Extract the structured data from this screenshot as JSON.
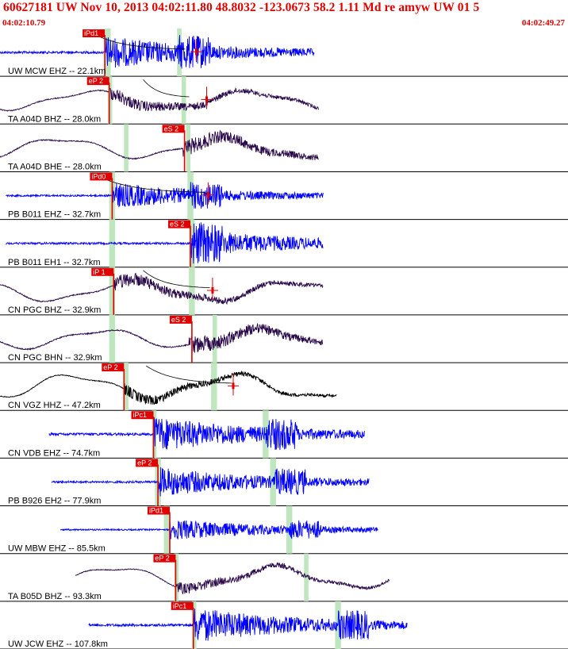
{
  "header": {
    "title": "60627181 UW Nov 10, 2013 04:02:11.80    48.8032 -123.0673 58.2 1.11 Md re amyw UW 01    5",
    "start_time": "04:02:10.79",
    "end_time": "04:02:49.27"
  },
  "time_axis": {
    "t0": 0,
    "t1": 38.48
  },
  "colors": {
    "red": "#e00000",
    "green": "#bfe6bf",
    "blue": "#0000ff",
    "purple": "#2b0a4a",
    "black": "#000000"
  },
  "traces": [
    {
      "label": "UW MCW EHZ -- 22.1km",
      "color": "blue",
      "kind": "hf",
      "start": 0.0,
      "end": 21.3,
      "p_time": 7.1,
      "p_label": "iPd1",
      "s_time": 12.1,
      "green": [
        [
          7.1,
          7.5
        ],
        [
          12.0,
          12.3
        ]
      ],
      "amp": 0.28,
      "lf": 0,
      "event": 7.1,
      "decay": [
        6.1,
        12.6
      ],
      "coda": 13.3
    },
    {
      "label": "TA A04D BHZ -- 28.0km",
      "color": "purple",
      "kind": "lf",
      "start": 0.0,
      "end": 21.6,
      "p_time": 7.4,
      "p_label": "eP 2",
      "s_time": 12.8,
      "green": [
        [
          7.3,
          7.6
        ],
        [
          12.3,
          12.6
        ]
      ],
      "amp": 0.12,
      "lf": 0.55,
      "event": 7.4,
      "decay": [
        9.7,
        12.9
      ],
      "coda": 14.0
    },
    {
      "label": "TA A04D BHE -- 28.0km",
      "color": "purple",
      "kind": "lf",
      "start": 0.0,
      "end": 21.6,
      "p_time": 12.5,
      "p_label": "eS 2",
      "s_time": 12.5,
      "green": [
        [
          8.4,
          8.7
        ],
        [
          12.6,
          12.9
        ]
      ],
      "amp": 0.14,
      "lf": 0.6,
      "event": 12.4,
      "decay": null,
      "coda": null
    },
    {
      "label": "PB B011 EHZ -- 32.7km",
      "color": "blue",
      "kind": "hf",
      "start": 0.4,
      "end": 21.9,
      "p_time": 7.6,
      "p_label": "iPd0",
      "s_time": 12.9,
      "green": [
        [
          7.4,
          7.8
        ],
        [
          12.7,
          13.1
        ]
      ],
      "amp": 0.22,
      "lf": 0,
      "event": 7.6,
      "decay": [
        6.5,
        14.0
      ],
      "coda": 14.1
    },
    {
      "label": "PB B011 EH1 -- 32.7km",
      "color": "blue",
      "kind": "hf",
      "start": 0.4,
      "end": 21.9,
      "p_time": 12.9,
      "p_label": "eS 2",
      "s_time": 12.9,
      "green": [
        [
          7.4,
          7.8
        ],
        [
          12.8,
          13.2
        ]
      ],
      "amp": 0.25,
      "lf": 0,
      "event": 12.9,
      "decay": null,
      "coda": null
    },
    {
      "label": "CN PGC BHZ -- 32.9km",
      "color": "purple",
      "kind": "lf",
      "start": 0.0,
      "end": 21.9,
      "p_time": 7.7,
      "p_label": "iP 1",
      "s_time": 13.1,
      "green": [
        [
          7.4,
          7.8
        ],
        [
          12.8,
          13.2
        ]
      ],
      "amp": 0.13,
      "lf": 0.6,
      "event": 7.7,
      "decay": [
        9.7,
        14.3
      ],
      "coda": 14.4
    },
    {
      "label": "CN PGC BHN -- 32.9km",
      "color": "purple",
      "kind": "lf",
      "start": 0.0,
      "end": 21.9,
      "p_time": 13.0,
      "p_label": "eS 2",
      "s_time": 13.0,
      "green": [
        [
          7.4,
          7.8
        ],
        [
          14.4,
          14.7
        ]
      ],
      "amp": 0.15,
      "lf": 0.55,
      "event": 12.8,
      "decay": null,
      "coda": null
    },
    {
      "label": "CN VGZ HHZ -- 47.2km",
      "color": "black",
      "kind": "lf",
      "start": 0.0,
      "end": 22.8,
      "p_time": 8.4,
      "p_label": "eP 2",
      "s_time": 14.6,
      "green": [
        [
          8.4,
          8.7
        ],
        [
          14.3,
          14.7
        ]
      ],
      "amp": 0.1,
      "lf": 0.72,
      "event": 8.4,
      "decay": [
        9.9,
        15.8
      ],
      "coda": 15.8
    },
    {
      "label": "CN VDB EHZ -- 74.7km",
      "color": "blue",
      "kind": "hf",
      "start": 3.3,
      "end": 24.7,
      "p_time": 10.4,
      "p_label": "iPc1",
      "s_time": 18.0,
      "green": [
        [
          10.3,
          10.6
        ],
        [
          17.8,
          18.2
        ]
      ],
      "amp": 0.3,
      "lf": 0,
      "event": 10.4,
      "decay": null,
      "coda": null
    },
    {
      "label": "PB B926 EH2 -- 77.9km",
      "color": "blue",
      "kind": "hf",
      "start": 3.5,
      "end": 25.0,
      "p_time": 10.7,
      "p_label": "eP 2",
      "s_time": 18.6,
      "green": [
        [
          10.5,
          10.9
        ],
        [
          18.3,
          18.7
        ]
      ],
      "amp": 0.25,
      "lf": 0,
      "event": 10.7,
      "decay": null,
      "coda": null
    },
    {
      "label": "UW MBW EHZ -- 85.5km",
      "color": "blue",
      "kind": "hf",
      "start": 4.1,
      "end": 25.6,
      "p_time": 11.5,
      "p_label": "iPd1",
      "s_time": 19.6,
      "green": [
        [
          11.1,
          11.5
        ],
        [
          19.4,
          19.8
        ]
      ],
      "amp": 0.18,
      "lf": 0,
      "event": 11.5,
      "decay": null,
      "coda": null
    },
    {
      "label": "TA B05D BHZ -- 93.3km",
      "color": "purple",
      "kind": "lf",
      "start": 5.1,
      "end": 26.4,
      "p_time": 11.9,
      "p_label": "eP 2",
      "s_time": 20.8,
      "green": [
        [
          11.8,
          12.1
        ],
        [
          20.6,
          20.9
        ]
      ],
      "amp": 0.1,
      "lf": 0.65,
      "event": 11.9,
      "decay": null,
      "coda": null
    },
    {
      "label": "UW JCW EHZ -- 107.8km",
      "color": "blue",
      "kind": "hf",
      "start": 6.0,
      "end": 27.6,
      "p_time": 13.1,
      "p_label": "iPc1",
      "s_time": 22.9,
      "green": [
        [
          13.0,
          13.3
        ],
        [
          22.7,
          23.1
        ]
      ],
      "amp": 0.3,
      "lf": 0,
      "event": 13.1,
      "decay": null,
      "coda": null
    }
  ]
}
